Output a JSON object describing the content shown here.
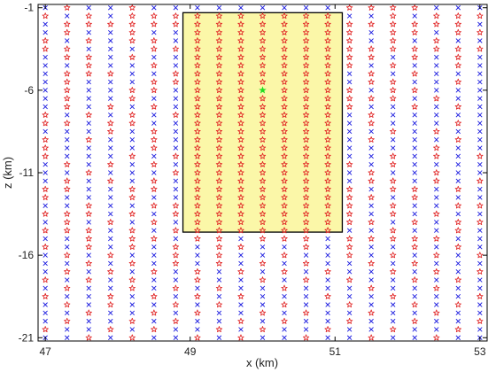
{
  "chart_data": {
    "type": "scatter",
    "xlabel": "x (km)",
    "ylabel": "z (km)",
    "xlim": [
      46.9,
      53.1
    ],
    "ylim": [
      -21.2,
      -0.8
    ],
    "x_ticks": [
      47,
      49,
      51,
      53
    ],
    "y_ticks": [
      -1,
      -6,
      -11,
      -16,
      -21
    ],
    "grid": false,
    "colors": {
      "star": "#e02020",
      "cross": "#1a1adf",
      "target": "#22dd22",
      "region_fill": "#fbf7a8",
      "region_edge": "#000000"
    },
    "highlight_region": {
      "x": [
        48.9,
        51.1
      ],
      "z": [
        -14.6,
        -1.3
      ]
    },
    "grid_points": {
      "x_start": 47.0,
      "x_step": 0.3,
      "x_count": 21,
      "z_start": -1.0,
      "z_step": -0.5,
      "z_count": 41
    },
    "star_points_outside_region": [
      [
        47.3,
        -1
      ],
      [
        48.2,
        -1
      ],
      [
        51.2,
        -1
      ],
      [
        51.5,
        -1
      ],
      [
        51.8,
        -1
      ],
      [
        52.1,
        -1
      ],
      [
        47.0,
        -1.5
      ],
      [
        47.6,
        -1.5
      ],
      [
        48.2,
        -1.5
      ],
      [
        48.5,
        -1.5
      ],
      [
        48.8,
        -1.5
      ],
      [
        51.8,
        -1.5
      ],
      [
        52.4,
        -1.5
      ],
      [
        52.7,
        -1.5
      ],
      [
        53.0,
        -1.5
      ],
      [
        47.3,
        -2
      ],
      [
        47.6,
        -2
      ],
      [
        47.9,
        -2
      ],
      [
        48.2,
        -2
      ],
      [
        48.5,
        -2
      ],
      [
        48.8,
        -2
      ],
      [
        51.2,
        -2
      ],
      [
        51.5,
        -2
      ],
      [
        51.8,
        -2
      ],
      [
        52.1,
        -2
      ],
      [
        52.4,
        -2
      ],
      [
        52.7,
        -2
      ],
      [
        47.3,
        -2.5
      ],
      [
        48.2,
        -2.5
      ],
      [
        51.2,
        -2.5
      ],
      [
        51.8,
        -2.5
      ],
      [
        52.1,
        -2.5
      ],
      [
        52.7,
        -2.5
      ],
      [
        53.0,
        -2.5
      ],
      [
        47.0,
        -3
      ],
      [
        47.6,
        -3
      ],
      [
        48.2,
        -3
      ],
      [
        48.5,
        -3
      ],
      [
        51.2,
        -3
      ],
      [
        51.8,
        -3
      ],
      [
        52.4,
        -3
      ],
      [
        47.0,
        -3.5
      ],
      [
        47.3,
        -3.5
      ],
      [
        48.5,
        -3.5
      ],
      [
        48.8,
        -3.5
      ],
      [
        51.2,
        -3.5
      ],
      [
        51.5,
        -3.5
      ],
      [
        51.8,
        -3.5
      ],
      [
        52.1,
        -3.5
      ],
      [
        52.4,
        -3.5
      ],
      [
        52.7,
        -3.5
      ],
      [
        53.0,
        -3.5
      ],
      [
        47.3,
        -4
      ],
      [
        47.6,
        -4
      ],
      [
        48.2,
        -4
      ],
      [
        51.2,
        -4
      ],
      [
        51.5,
        -4
      ],
      [
        52.1,
        -4
      ],
      [
        52.7,
        -4
      ],
      [
        47.6,
        -4.5
      ],
      [
        48.5,
        -4.5
      ],
      [
        51.2,
        -4.5
      ],
      [
        51.8,
        -4.5
      ],
      [
        52.7,
        -4.5
      ],
      [
        47.3,
        -5
      ],
      [
        47.6,
        -5
      ],
      [
        47.9,
        -5
      ],
      [
        48.8,
        -5
      ],
      [
        51.5,
        -5
      ],
      [
        52.1,
        -5
      ],
      [
        47.3,
        -5.5
      ],
      [
        48.5,
        -5.5
      ],
      [
        48.8,
        -5.5
      ],
      [
        51.5,
        -5.5
      ],
      [
        51.8,
        -5.5
      ],
      [
        52.7,
        -5.5
      ],
      [
        47.3,
        -6
      ],
      [
        48.2,
        -6
      ],
      [
        48.5,
        -6
      ],
      [
        51.2,
        -6
      ],
      [
        51.8,
        -6
      ],
      [
        52.1,
        -6
      ],
      [
        47.3,
        -6.5
      ],
      [
        48.2,
        -6.5
      ],
      [
        51.2,
        -6.5
      ],
      [
        51.5,
        -6.5
      ],
      [
        51.8,
        -6.5
      ],
      [
        52.4,
        -6.5
      ],
      [
        47.3,
        -7
      ],
      [
        47.9,
        -7
      ],
      [
        48.5,
        -7
      ],
      [
        51.2,
        -7
      ],
      [
        52.1,
        -7
      ],
      [
        52.7,
        -7
      ],
      [
        47.0,
        -7.5
      ],
      [
        47.6,
        -7.5
      ],
      [
        48.2,
        -7.5
      ],
      [
        48.8,
        -7.5
      ],
      [
        51.5,
        -7.5
      ],
      [
        47.0,
        -8
      ],
      [
        47.3,
        -8
      ],
      [
        47.9,
        -8
      ],
      [
        48.2,
        -8
      ],
      [
        51.5,
        -8
      ],
      [
        52.7,
        -8
      ],
      [
        47.9,
        -8.5
      ],
      [
        48.5,
        -8.5
      ],
      [
        51.8,
        -8.5
      ],
      [
        52.4,
        -8.5
      ],
      [
        47.0,
        -9
      ],
      [
        47.6,
        -9
      ],
      [
        48.5,
        -9
      ],
      [
        51.5,
        -9
      ],
      [
        52.7,
        -9
      ],
      [
        47.0,
        -9.5
      ],
      [
        48.5,
        -9.5
      ],
      [
        52.4,
        -9.5
      ],
      [
        47.0,
        -10
      ],
      [
        48.2,
        -10
      ],
      [
        48.8,
        -10
      ],
      [
        51.8,
        -10
      ],
      [
        52.4,
        -10
      ],
      [
        53.0,
        -10
      ],
      [
        47.3,
        -10.5
      ],
      [
        47.9,
        -10.5
      ],
      [
        48.5,
        -10.5
      ],
      [
        51.2,
        -10.5
      ],
      [
        51.8,
        -10.5
      ],
      [
        47.6,
        -11
      ],
      [
        48.8,
        -11
      ],
      [
        51.5,
        -11
      ],
      [
        52.4,
        -11
      ],
      [
        47.3,
        -11.5
      ],
      [
        47.9,
        -11.5
      ],
      [
        48.5,
        -11.5
      ],
      [
        51.5,
        -11.5
      ],
      [
        51.8,
        -11.5
      ],
      [
        52.4,
        -11.5
      ],
      [
        53.0,
        -11.5
      ],
      [
        47.0,
        -12
      ],
      [
        47.3,
        -12
      ],
      [
        48.2,
        -12
      ],
      [
        48.5,
        -12
      ],
      [
        51.2,
        -12
      ],
      [
        51.8,
        -12
      ],
      [
        52.1,
        -12
      ],
      [
        52.7,
        -12
      ],
      [
        47.0,
        -12.5
      ],
      [
        48.2,
        -12.5
      ],
      [
        51.2,
        -12.5
      ],
      [
        51.5,
        -12.5
      ],
      [
        52.1,
        -12.5
      ],
      [
        47.6,
        -13
      ],
      [
        48.5,
        -13
      ],
      [
        48.8,
        -13
      ],
      [
        51.2,
        -13
      ],
      [
        51.8,
        -13
      ],
      [
        52.7,
        -13
      ],
      [
        53.0,
        -13
      ],
      [
        47.0,
        -13.5
      ],
      [
        47.3,
        -13.5
      ],
      [
        47.6,
        -13.5
      ],
      [
        48.2,
        -13.5
      ],
      [
        48.8,
        -13.5
      ],
      [
        51.2,
        -13.5
      ],
      [
        51.8,
        -13.5
      ],
      [
        52.4,
        -13.5
      ],
      [
        47.3,
        -14
      ],
      [
        47.9,
        -14
      ],
      [
        48.5,
        -14
      ],
      [
        51.2,
        -14
      ],
      [
        51.5,
        -14
      ],
      [
        52.1,
        -14
      ],
      [
        52.7,
        -14
      ],
      [
        53.0,
        -14
      ],
      [
        47.0,
        -14.5
      ],
      [
        47.3,
        -14.5
      ],
      [
        47.6,
        -14.5
      ],
      [
        48.2,
        -14.5
      ],
      [
        48.8,
        -14.5
      ],
      [
        51.8,
        -14.5
      ],
      [
        52.7,
        -14.5
      ],
      [
        47.6,
        -15
      ],
      [
        48.2,
        -15
      ],
      [
        48.5,
        -15
      ],
      [
        49.1,
        -15
      ],
      [
        49.4,
        -15
      ],
      [
        50.0,
        -15
      ],
      [
        50.3,
        -15
      ],
      [
        50.6,
        -15
      ],
      [
        51.2,
        -15
      ],
      [
        51.5,
        -15
      ],
      [
        51.8,
        -15
      ],
      [
        52.1,
        -15
      ],
      [
        52.4,
        -15
      ],
      [
        47.0,
        -15.5
      ],
      [
        47.6,
        -15.5
      ],
      [
        48.2,
        -15.5
      ],
      [
        48.8,
        -15.5
      ],
      [
        49.4,
        -15.5
      ],
      [
        49.7,
        -15.5
      ],
      [
        50.6,
        -15.5
      ],
      [
        51.2,
        -15.5
      ],
      [
        52.1,
        -15.5
      ],
      [
        52.7,
        -15.5
      ],
      [
        47.3,
        -16
      ],
      [
        47.9,
        -16
      ],
      [
        48.8,
        -16
      ],
      [
        49.4,
        -16
      ],
      [
        50.3,
        -16
      ],
      [
        51.2,
        -16
      ],
      [
        51.8,
        -16
      ],
      [
        52.4,
        -16
      ],
      [
        53.0,
        -16
      ],
      [
        47.6,
        -16.5
      ],
      [
        48.2,
        -16.5
      ],
      [
        48.8,
        -16.5
      ],
      [
        49.4,
        -16.5
      ],
      [
        50.0,
        -16.5
      ],
      [
        50.6,
        -16.5
      ],
      [
        51.5,
        -16.5
      ],
      [
        52.1,
        -16.5
      ],
      [
        47.3,
        -17
      ],
      [
        47.9,
        -17
      ],
      [
        48.5,
        -17
      ],
      [
        49.1,
        -17
      ],
      [
        49.7,
        -17
      ],
      [
        50.3,
        -17
      ],
      [
        50.9,
        -17
      ],
      [
        51.8,
        -17
      ],
      [
        52.4,
        -17
      ],
      [
        53.0,
        -17
      ],
      [
        47.0,
        -17.5
      ],
      [
        47.6,
        -17.5
      ],
      [
        48.2,
        -17.5
      ],
      [
        49.1,
        -17.5
      ],
      [
        50.0,
        -17.5
      ],
      [
        50.6,
        -17.5
      ],
      [
        51.2,
        -17.5
      ],
      [
        52.1,
        -17.5
      ],
      [
        52.7,
        -17.5
      ],
      [
        47.3,
        -18
      ],
      [
        48.2,
        -18
      ],
      [
        48.8,
        -18
      ],
      [
        49.4,
        -18
      ],
      [
        50.3,
        -18
      ],
      [
        51.5,
        -18
      ],
      [
        52.4,
        -18
      ],
      [
        47.0,
        -18.5
      ],
      [
        47.9,
        -18.5
      ],
      [
        48.5,
        -18.5
      ],
      [
        49.1,
        -18.5
      ],
      [
        49.7,
        -18.5
      ],
      [
        50.9,
        -18.5
      ],
      [
        51.8,
        -18.5
      ],
      [
        53.0,
        -18.5
      ],
      [
        47.3,
        -19
      ],
      [
        47.9,
        -19
      ],
      [
        48.8,
        -19
      ],
      [
        49.4,
        -19
      ],
      [
        50.3,
        -19
      ],
      [
        51.2,
        -19
      ],
      [
        52.1,
        -19
      ],
      [
        52.7,
        -19
      ],
      [
        47.6,
        -19.5
      ],
      [
        48.5,
        -19.5
      ],
      [
        49.1,
        -19.5
      ],
      [
        50.0,
        -19.5
      ],
      [
        50.6,
        -19.5
      ],
      [
        51.5,
        -19.5
      ],
      [
        52.4,
        -19.5
      ],
      [
        47.3,
        -20
      ],
      [
        48.2,
        -20
      ],
      [
        48.8,
        -20
      ],
      [
        49.7,
        -20
      ],
      [
        50.3,
        -20
      ],
      [
        51.2,
        -20
      ],
      [
        52.1,
        -20
      ],
      [
        53.0,
        -20
      ],
      [
        47.0,
        -20.5
      ],
      [
        47.9,
        -20.5
      ],
      [
        48.5,
        -20.5
      ],
      [
        49.4,
        -20.5
      ],
      [
        50.0,
        -20.5
      ],
      [
        50.9,
        -20.5
      ],
      [
        51.8,
        -20.5
      ],
      [
        52.7,
        -20.5
      ],
      [
        47.6,
        -21
      ],
      [
        48.2,
        -21
      ],
      [
        49.1,
        -21
      ],
      [
        49.7,
        -21
      ],
      [
        50.6,
        -21
      ],
      [
        51.5,
        -21
      ],
      [
        52.4,
        -21
      ]
    ],
    "target_point": [
      50.0,
      -6.0
    ]
  }
}
